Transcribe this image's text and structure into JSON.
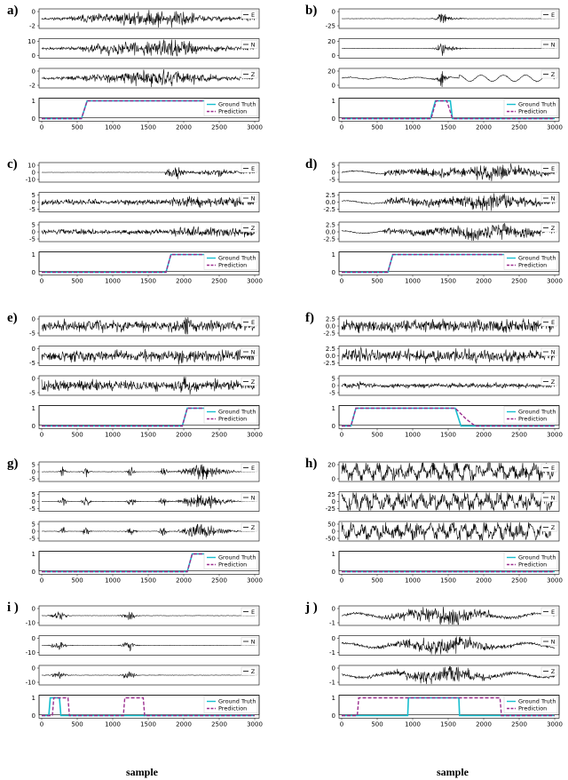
{
  "chart_data": [
    {
      "type": "line",
      "label": "a)",
      "channels": [
        "E",
        "N",
        "Z"
      ],
      "ylim": {
        "E": [
          -2.5,
          2.5
        ],
        "N": [
          -10,
          10
        ],
        "Z": [
          -3,
          3
        ]
      },
      "yticks": {
        "E": [
          "0",
          "-2"
        ],
        "N": [
          "10",
          "0"
        ],
        "Z": [
          "0",
          "-2"
        ]
      },
      "ground_truth": {
        "x": [
          0,
          560,
          640,
          3000
        ],
        "y": [
          0,
          0,
          1,
          1
        ]
      },
      "prediction": {
        "x": [
          0,
          560,
          640,
          3000
        ],
        "y": [
          0,
          0,
          1,
          1
        ]
      },
      "xticks": [
        "0",
        "500",
        "1000",
        "1500",
        "2000",
        "2500",
        "3000"
      ],
      "prob_yticks": [
        "1",
        "0"
      ]
    },
    {
      "type": "line",
      "label": "b)",
      "channels": [
        "E",
        "N",
        "Z"
      ],
      "ylim": {
        "E": [
          -25,
          25
        ],
        "N": [
          -25,
          25
        ],
        "Z": [
          -25,
          25
        ]
      },
      "yticks": {
        "E": [
          "0",
          "-25"
        ],
        "N": [
          "20",
          "0"
        ],
        "Z": [
          "20",
          "0"
        ]
      },
      "ground_truth": {
        "x": [
          0,
          1250,
          1320,
          1530,
          1560,
          3000
        ],
        "y": [
          0,
          0,
          1,
          1,
          0,
          0
        ]
      },
      "prediction": {
        "x": [
          0,
          1260,
          1330,
          1480,
          1560,
          3000
        ],
        "y": [
          0,
          0,
          1,
          1,
          0,
          0
        ]
      },
      "xticks": [
        "0",
        "500",
        "1000",
        "1500",
        "2000",
        "2500",
        "3000"
      ],
      "prob_yticks": [
        "1",
        "0"
      ]
    },
    {
      "type": "line",
      "label": "c)",
      "channels": [
        "E",
        "N",
        "Z"
      ],
      "ylim": {
        "E": [
          -2.5,
          2.5
        ],
        "N": [
          -10,
          10
        ],
        "Z": [
          -10,
          10
        ]
      },
      "yticks": {
        "E": [
          "10",
          "0",
          "-10"
        ],
        "N": [
          "5",
          "0",
          "-5"
        ],
        "Z": [
          "5",
          "0",
          "-5"
        ]
      },
      "ground_truth": {
        "x": [
          0,
          1750,
          1820,
          3000
        ],
        "y": [
          0,
          0,
          1,
          1
        ]
      },
      "prediction": {
        "x": [
          0,
          1750,
          1820,
          3000
        ],
        "y": [
          0,
          0,
          1,
          1
        ]
      },
      "xticks": [
        "0",
        "500",
        "1000",
        "1500",
        "2000",
        "2500",
        "3000"
      ],
      "prob_yticks": [
        "1",
        "0"
      ]
    },
    {
      "type": "line",
      "label": "d)",
      "channels": [
        "E",
        "N",
        "Z"
      ],
      "ylim": {
        "E": [
          -5,
          5
        ],
        "N": [
          -5,
          5
        ],
        "Z": [
          -5,
          5
        ]
      },
      "yticks": {
        "E": [
          "5",
          "0",
          "-5"
        ],
        "N": [
          "2.5",
          "0.0",
          "-2.5"
        ],
        "Z": [
          "2.5",
          "0.0",
          "-2.5"
        ]
      },
      "ground_truth": {
        "x": [
          0,
          650,
          720,
          3000
        ],
        "y": [
          0,
          0,
          1,
          1
        ]
      },
      "prediction": {
        "x": [
          0,
          650,
          720,
          3000
        ],
        "y": [
          0,
          0,
          1,
          1
        ]
      },
      "xticks": [
        "0",
        "500",
        "1000",
        "1500",
        "2000",
        "2500",
        "3000"
      ],
      "prob_yticks": [
        "1",
        "0"
      ]
    },
    {
      "type": "line",
      "label": "e)",
      "channels": [
        "E",
        "N",
        "Z"
      ],
      "ylim": {
        "E": [
          -5,
          5
        ],
        "N": [
          -5,
          5
        ],
        "Z": [
          -5,
          5
        ]
      },
      "yticks": {
        "E": [
          "0",
          "-5"
        ],
        "N": [
          "0",
          "-5"
        ],
        "Z": [
          "0",
          "-5"
        ]
      },
      "ground_truth": {
        "x": [
          0,
          1980,
          2050,
          3000
        ],
        "y": [
          0,
          0,
          1,
          1
        ]
      },
      "prediction": {
        "x": [
          0,
          1980,
          2050,
          3000
        ],
        "y": [
          0,
          0,
          1,
          1
        ]
      },
      "xticks": [
        "0",
        "500",
        "1000",
        "1500",
        "2000",
        "2500",
        "3000"
      ],
      "prob_yticks": [
        "1",
        "0"
      ]
    },
    {
      "type": "line",
      "label": "f)",
      "channels": [
        "E",
        "N",
        "Z"
      ],
      "ylim": {
        "E": [
          -2.5,
          2.5
        ],
        "N": [
          -2.5,
          2.5
        ],
        "Z": [
          -2.5,
          2.5
        ]
      },
      "yticks": {
        "E": [
          "2.5",
          "0.0",
          "-2.5"
        ],
        "N": [
          "2.5",
          "0.0",
          "-2.5"
        ],
        "Z": [
          "5",
          "0",
          "-5"
        ]
      },
      "ground_truth": {
        "x": [
          0,
          130,
          200,
          1600,
          1680,
          3000
        ],
        "y": [
          0,
          0,
          1,
          1,
          0,
          0
        ]
      },
      "prediction": {
        "x": [
          0,
          130,
          200,
          1600,
          1750,
          1880,
          3000
        ],
        "y": [
          0,
          0,
          1,
          1,
          0.4,
          0,
          0
        ]
      },
      "xticks": [
        "0",
        "500",
        "1000",
        "1500",
        "2000",
        "2500",
        "3000"
      ],
      "prob_yticks": [
        "1",
        "0"
      ]
    },
    {
      "type": "line",
      "label": "g)",
      "channels": [
        "E",
        "N",
        "Z"
      ],
      "ylim": {
        "E": [
          -5,
          5
        ],
        "N": [
          -5,
          5
        ],
        "Z": [
          -5,
          5
        ]
      },
      "yticks": {
        "E": [
          "5",
          "0",
          "-5"
        ],
        "N": [
          "5",
          "0",
          "-5"
        ],
        "Z": [
          "5",
          "0",
          "-5"
        ]
      },
      "ground_truth": {
        "x": [
          0,
          2050,
          2120,
          3000
        ],
        "y": [
          0,
          0,
          1,
          1
        ]
      },
      "prediction": {
        "x": [
          0,
          2050,
          2120,
          3000
        ],
        "y": [
          0,
          0,
          1,
          1
        ]
      },
      "xticks": [
        "0",
        "500",
        "1000",
        "1500",
        "2000",
        "2500",
        "3000"
      ],
      "prob_yticks": [
        "1",
        "0"
      ]
    },
    {
      "type": "line",
      "label": "h)",
      "channels": [
        "E",
        "N",
        "Z"
      ],
      "ylim": {
        "E": [
          -20,
          20
        ],
        "N": [
          -25,
          25
        ],
        "Z": [
          -50,
          50
        ]
      },
      "yticks": {
        "E": [
          "20",
          "0"
        ],
        "N": [
          "25",
          "0",
          "-25"
        ],
        "Z": [
          "50",
          "0",
          "-50"
        ]
      },
      "ground_truth": {
        "x": [
          0,
          3000
        ],
        "y": [
          0,
          0
        ]
      },
      "prediction": {
        "x": [
          0,
          3000
        ],
        "y": [
          0,
          0
        ]
      },
      "xticks": [
        "0",
        "500",
        "1000",
        "1500",
        "2000",
        "2500",
        "3000"
      ],
      "prob_yticks": [
        "1",
        "0"
      ]
    },
    {
      "type": "line",
      "label": "i )",
      "channels": [
        "E",
        "N",
        "Z"
      ],
      "ylim": {
        "E": [
          -10,
          10
        ],
        "N": [
          -10,
          10
        ],
        "Z": [
          -10,
          10
        ]
      },
      "yticks": {
        "E": [
          "0",
          "-10"
        ],
        "N": [
          "0",
          "-10"
        ],
        "Z": [
          "0",
          "-10"
        ]
      },
      "ground_truth": {
        "x": [
          0,
          100,
          120,
          250,
          270,
          3000
        ],
        "y": [
          0,
          0,
          1,
          1,
          0,
          0
        ]
      },
      "prediction": {
        "x": [
          0,
          150,
          170,
          370,
          390,
          1150,
          1170,
          1430,
          1450,
          3000
        ],
        "y": [
          0,
          0,
          1,
          1,
          0,
          0,
          1,
          1,
          0,
          0
        ]
      },
      "xticks": [
        "0",
        "500",
        "1000",
        "1500",
        "2000",
        "2500",
        "3000"
      ],
      "prob_yticks": [
        "1",
        "0"
      ]
    },
    {
      "type": "line",
      "label": "j )",
      "channels": [
        "E",
        "N",
        "Z"
      ],
      "ylim": {
        "E": [
          -1,
          1
        ],
        "N": [
          -1,
          1
        ],
        "Z": [
          -1,
          1
        ]
      },
      "yticks": {
        "E": [
          "0",
          "-1"
        ],
        "N": [
          "0",
          "-1"
        ],
        "Z": [
          "0",
          "-1"
        ]
      },
      "ground_truth": {
        "x": [
          0,
          930,
          940,
          1650,
          1660,
          3000
        ],
        "y": [
          0,
          0,
          1,
          1,
          0,
          0
        ]
      },
      "prediction": {
        "x": [
          0,
          220,
          240,
          2230,
          2250,
          3000
        ],
        "y": [
          0,
          0,
          1,
          1,
          0,
          0
        ]
      },
      "xticks": [
        "0",
        "500",
        "1000",
        "1500",
        "2000",
        "2500",
        "3000"
      ],
      "prob_yticks": [
        "1",
        "0"
      ]
    }
  ],
  "legend": {
    "ground_truth": "Ground Truth",
    "prediction": "Prediction"
  },
  "xlabel": "sample",
  "colors": {
    "ground_truth": "#17becf",
    "prediction": "#9b2f8f",
    "signal": "#000000"
  }
}
